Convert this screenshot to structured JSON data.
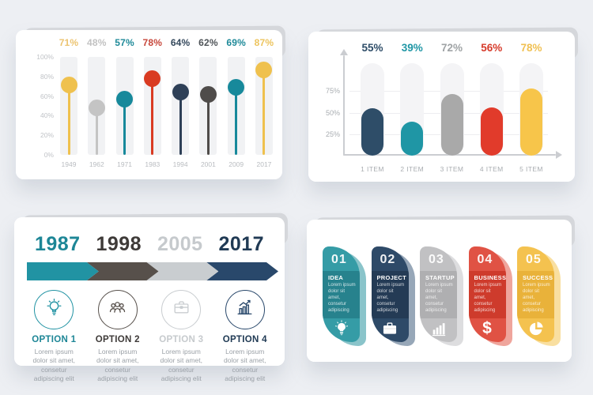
{
  "canvas": {
    "background": "#edeff3",
    "card_background": "#ffffff"
  },
  "chart_data": [
    {
      "id": "year-lollipop",
      "panel": "top-left",
      "type": "lollipop",
      "title": "",
      "categories": [
        "1949",
        "1962",
        "1971",
        "1983",
        "1994",
        "2001",
        "2009",
        "2017"
      ],
      "values": [
        71,
        48,
        57,
        78,
        64,
        62,
        69,
        87
      ],
      "value_labels": [
        "71%",
        "48%",
        "57%",
        "78%",
        "64%",
        "62%",
        "69%",
        "87%"
      ],
      "colors": [
        "#EFC14E",
        "#C4C4C4",
        "#17899B",
        "#D93B22",
        "#2E4057",
        "#4F4C4A",
        "#17899B",
        "#EFC14E"
      ],
      "label_colors": [
        "#ECC471",
        "#C2C2C2",
        "#1F8A99",
        "#C7473B",
        "#33475B",
        "#4E5357",
        "#1F8A99",
        "#EDC45E"
      ],
      "y_ticks": [
        "100%",
        "80%",
        "60%",
        "40%",
        "20%",
        "0%"
      ],
      "ylim": [
        0,
        100
      ],
      "grid": false,
      "legend": null
    },
    {
      "id": "item-rounded-bars",
      "panel": "top-right",
      "type": "bar",
      "title": "",
      "categories": [
        "1 ITEM",
        "2 ITEM",
        "3 ITEM",
        "4 ITEM",
        "5 ITEM"
      ],
      "values": [
        55,
        39,
        72,
        56,
        78
      ],
      "value_labels": [
        "55%",
        "39%",
        "72%",
        "56%",
        "78%"
      ],
      "colors": [
        "#2E4D68",
        "#1F96A5",
        "#A9A9A9",
        "#E13B2B",
        "#F7C54A"
      ],
      "label_colors": [
        "#2E4D68",
        "#1F96A5",
        "#9FA3A5",
        "#D63A2A",
        "#F0C052"
      ],
      "y_ticks": [
        "75%",
        "50%",
        "25%"
      ],
      "ylim": [
        0,
        100
      ],
      "grid": true,
      "legend": null
    }
  ],
  "timeline": {
    "panel": "bottom-left",
    "milestones": [
      {
        "year": "1987",
        "year_color": "#1D8696",
        "arrow_color": "#2193A3",
        "icon": "lightbulb-icon",
        "label": "OPTION 1",
        "label_color": "#1D8696",
        "text": "Lorem ipsum dolor sit amet, consetur adipiscing elit"
      },
      {
        "year": "1998",
        "year_color": "#3E3A38",
        "arrow_color": "#57504B",
        "icon": "team-icon",
        "label": "OPTION 2",
        "label_color": "#3E3A38",
        "text": "Lorem ipsum dolor sit amet, consetur adipiscing elit"
      },
      {
        "year": "2005",
        "year_color": "#C6CACD",
        "arrow_color": "#C9CDD0",
        "icon": "briefcase-icon",
        "label": "OPTION 3",
        "label_color": "#C6CACD",
        "text": "Lorem ipsum dolor sit amet, consetur adipiscing elit"
      },
      {
        "year": "2017",
        "year_color": "#203A54",
        "arrow_color": "#29486B",
        "icon": "growth-chart-icon",
        "label": "OPTION 4",
        "label_color": "#203A54",
        "text": "Lorem ipsum dolor sit amet, consetur adipiscing elit"
      }
    ]
  },
  "banners": {
    "panel": "bottom-right",
    "items": [
      {
        "number": "01",
        "label": "IDEA",
        "text": "Lorem ipsum dolor sit amet, consetur adipiscing",
        "icon": "lightbulb-icon",
        "base_color": "#359CA6",
        "band_color": "#27828D",
        "echo_color": "#8AC4CA"
      },
      {
        "number": "02",
        "label": "PROJECT",
        "text": "Lorem ipsum dolor sit amet, consetur adipiscing",
        "icon": "briefcase-icon",
        "base_color": "#2E4A68",
        "band_color": "#243B55",
        "echo_color": "#97A7B8"
      },
      {
        "number": "03",
        "label": "STARTUP",
        "text": "Lorem ipsum dolor sit amet, consetur adipiscing",
        "icon": "bar-chart-icon",
        "base_color": "#C1C1C3",
        "band_color": "#AFAFB1",
        "echo_color": "#DDDDDF"
      },
      {
        "number": "04",
        "label": "BUSINESS",
        "text": "Lorem ipsum dolor sit amet, consetur adipiscing",
        "icon": "dollar-icon",
        "base_color": "#E05244",
        "band_color": "#CE3B2C",
        "echo_color": "#EFA59C"
      },
      {
        "number": "05",
        "label": "SUCCESS",
        "text": "Lorem ipsum dolor sit amet, consetur adipiscing",
        "icon": "pie-chart-icon",
        "base_color": "#F4C24F",
        "band_color": "#E9B23A",
        "echo_color": "#F9DFA0"
      }
    ]
  }
}
